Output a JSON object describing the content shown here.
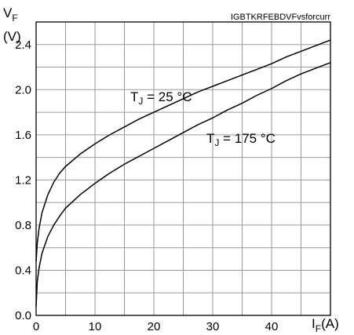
{
  "chart_data": {
    "type": "line",
    "reference_label": "IGBTKRFEBDVFvsforcurr",
    "y_axis": {
      "symbol": "V",
      "subscript": "F",
      "unit": "(V)",
      "range": [
        0.0,
        2.6
      ],
      "ticks": [
        0.0,
        0.4,
        0.8,
        1.2,
        1.6,
        2.0,
        2.4
      ],
      "tick_labels": [
        "0.0",
        "0.4",
        "0.8",
        "1.2",
        "1.6",
        "2.0",
        "2.4"
      ],
      "minor_grid_step": 0.2
    },
    "x_axis": {
      "symbol": "I",
      "subscript": "F",
      "unit": "(A)",
      "range": [
        0,
        50
      ],
      "ticks": [
        0,
        10,
        20,
        30,
        40
      ],
      "tick_labels": [
        "0",
        "10",
        "20",
        "30",
        "40"
      ],
      "minor_grid_step": 5
    },
    "grid": true,
    "series": [
      {
        "name": "TJ = 25 °C",
        "label": {
          "symbol": "T",
          "subscript": "J",
          "text": " = 25 °C"
        },
        "x": [
          0,
          0.2,
          0.5,
          1,
          2,
          3,
          4,
          5,
          7.5,
          10,
          12.5,
          15,
          17.5,
          20,
          22.5,
          25,
          27.5,
          30,
          32.5,
          35,
          37.5,
          40,
          42.5,
          45,
          47.5,
          50
        ],
        "y": [
          0.48,
          0.64,
          0.77,
          0.91,
          1.07,
          1.18,
          1.26,
          1.32,
          1.43,
          1.52,
          1.6,
          1.67,
          1.74,
          1.8,
          1.86,
          1.92,
          1.98,
          2.03,
          2.08,
          2.13,
          2.18,
          2.23,
          2.29,
          2.34,
          2.39,
          2.44
        ]
      },
      {
        "name": "TJ = 175 °C",
        "label": {
          "symbol": "T",
          "subscript": "J",
          "text": " = 175 °C"
        },
        "x": [
          0,
          0.2,
          0.5,
          1,
          2,
          3,
          4,
          5,
          7.5,
          10,
          12.5,
          15,
          17.5,
          20,
          22.5,
          25,
          27.5,
          30,
          32.5,
          35,
          37.5,
          40,
          42.5,
          45,
          47.5,
          50
        ],
        "y": [
          0.08,
          0.3,
          0.42,
          0.55,
          0.7,
          0.8,
          0.88,
          0.95,
          1.07,
          1.17,
          1.26,
          1.34,
          1.41,
          1.48,
          1.55,
          1.62,
          1.69,
          1.75,
          1.82,
          1.88,
          1.95,
          2.01,
          2.08,
          2.14,
          2.19,
          2.24
        ]
      }
    ],
    "colors": {
      "curve": "#000000",
      "grid": "#9a9a9a",
      "frame": "#000000",
      "background": "#ffffff"
    }
  }
}
